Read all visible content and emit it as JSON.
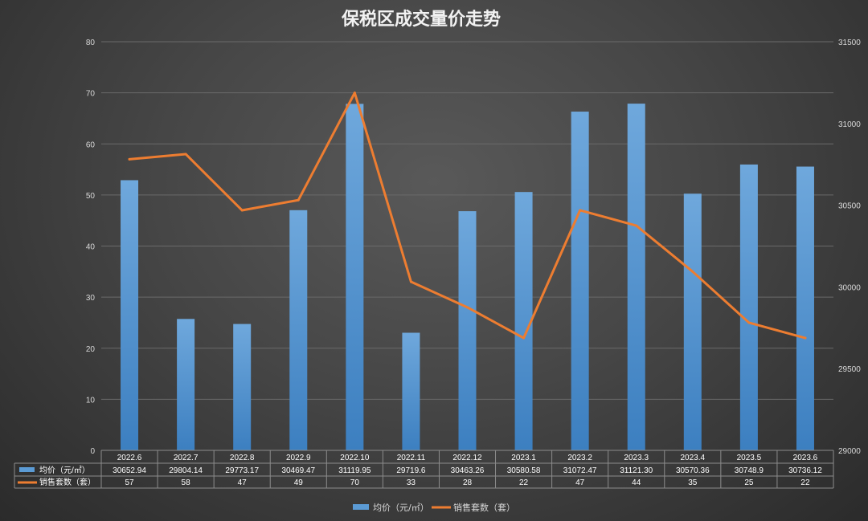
{
  "chart_data": {
    "type": "bar",
    "title": "保税区成交量价走势",
    "categories": [
      "2022.6",
      "2022.7",
      "2022.8",
      "2022.9",
      "2022.10",
      "2022.11",
      "2022.12",
      "2023.1",
      "2023.2",
      "2023.3",
      "2023.4",
      "2023.5",
      "2023.6"
    ],
    "series": [
      {
        "name": "均价（元/㎡）",
        "type": "bar",
        "axis": "right",
        "color": "#5b9bd5",
        "values": [
          30652.94,
          29804.14,
          29773.17,
          30469.47,
          31119.95,
          29719.6,
          30463.26,
          30580.58,
          31072.47,
          31121.3,
          30570.36,
          30748.9,
          30736.12
        ],
        "display": [
          "30652.94",
          "29804.14",
          "29773.17",
          "30469.47",
          "31119.95",
          "29719.6",
          "30463.26",
          "30580.58",
          "31072.47",
          "31121.30",
          "30570.36",
          "30748.9",
          "30736.12"
        ]
      },
      {
        "name": "销售套数（套）",
        "type": "line",
        "axis": "left",
        "color": "#ed7d31",
        "values": [
          57,
          58,
          47,
          49,
          70,
          33,
          28,
          22,
          47,
          44,
          35,
          25,
          22
        ],
        "display": [
          "57",
          "58",
          "47",
          "49",
          "70",
          "33",
          "28",
          "22",
          "47",
          "44",
          "35",
          "25",
          "22"
        ]
      }
    ],
    "y_left": {
      "min": 0,
      "max": 80,
      "ticks": [
        "0",
        "10",
        "20",
        "30",
        "40",
        "50",
        "60",
        "70",
        "80"
      ]
    },
    "y_right": {
      "min": 29000,
      "max": 31500,
      "ticks": [
        "29000",
        "29500",
        "30000",
        "30500",
        "31000",
        "31500"
      ]
    },
    "grid": true,
    "data_table": true,
    "legend_position": "bottom"
  }
}
